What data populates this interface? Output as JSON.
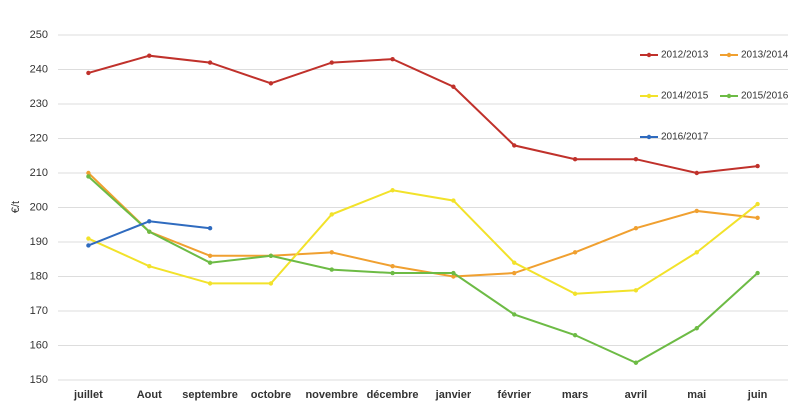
{
  "chart_data": {
    "type": "line",
    "ylabel": "€/t",
    "categories": [
      "juillet",
      "Aout",
      "septembre",
      "octobre",
      "novembre",
      "décembre",
      "janvier",
      "février",
      "mars",
      "avril",
      "mai",
      "juin"
    ],
    "series": [
      {
        "name": "2012/2013",
        "color": "#c0312b",
        "values": [
          239,
          244,
          242,
          236,
          242,
          243,
          235,
          218,
          214,
          214,
          210,
          212
        ]
      },
      {
        "name": "2013/2014",
        "color": "#f0a030",
        "values": [
          210,
          193,
          186,
          186,
          187,
          183,
          180,
          181,
          187,
          194,
          199,
          197
        ]
      },
      {
        "name": "2014/2015",
        "color": "#f2e22a",
        "values": [
          191,
          183,
          178,
          178,
          198,
          205,
          202,
          184,
          175,
          176,
          187,
          201
        ]
      },
      {
        "name": "2015/2016",
        "color": "#6dbb45",
        "values": [
          209,
          193,
          184,
          186,
          182,
          181,
          181,
          169,
          163,
          155,
          165,
          181
        ]
      },
      {
        "name": "2016/2017",
        "color": "#2f6bbf",
        "values": [
          189,
          196,
          194,
          null,
          null,
          null,
          null,
          null,
          null,
          null,
          null,
          null
        ]
      }
    ],
    "ylim": [
      150,
      250
    ],
    "yticks": [
      150,
      160,
      170,
      180,
      190,
      200,
      210,
      220,
      230,
      240,
      250
    ],
    "grid": true,
    "legend": "top-right"
  }
}
